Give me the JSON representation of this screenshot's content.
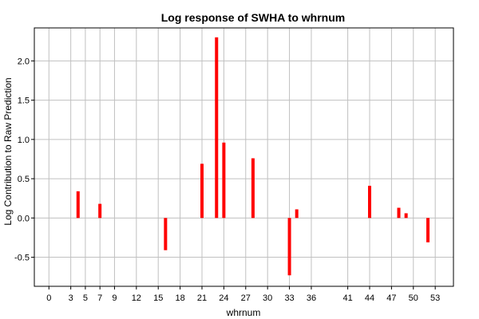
{
  "chart_data": {
    "type": "bar",
    "title": "Log response of SWHA to whrnum",
    "xlabel": "whrnum",
    "ylabel": "Log Contribution to Raw Prediction",
    "xlim": [
      -2,
      55.5
    ],
    "ylim": [
      -0.87,
      2.42
    ],
    "x_ticks": [
      0,
      3,
      5,
      7,
      9,
      12,
      15,
      18,
      21,
      24,
      27,
      30,
      33,
      36,
      41,
      44,
      47,
      50,
      53
    ],
    "x_tick_labels": [
      "0",
      "3",
      "5",
      "7",
      "9",
      "12",
      "15",
      "18",
      "21",
      "24",
      "27",
      "30",
      "33",
      "36",
      "41",
      "44",
      "47",
      "50",
      "53"
    ],
    "y_ticks": [
      -0.5,
      0.0,
      0.5,
      1.0,
      1.5,
      2.0
    ],
    "y_tick_labels": [
      "-0.5",
      "0.0",
      "0.5",
      "1.0",
      "1.5",
      "2.0"
    ],
    "grid": true,
    "bar_color": "#ff0000",
    "bars": [
      {
        "x": 4,
        "value": 0.34
      },
      {
        "x": 7,
        "value": 0.18
      },
      {
        "x": 16,
        "value": -0.41
      },
      {
        "x": 21,
        "value": 0.69
      },
      {
        "x": 23,
        "value": 2.3
      },
      {
        "x": 24,
        "value": 0.96
      },
      {
        "x": 28,
        "value": 0.76
      },
      {
        "x": 33,
        "value": -0.73
      },
      {
        "x": 34,
        "value": 0.11
      },
      {
        "x": 44,
        "value": 0.41
      },
      {
        "x": 48,
        "value": 0.13
      },
      {
        "x": 49,
        "value": 0.06
      },
      {
        "x": 52,
        "value": -0.31
      }
    ]
  }
}
